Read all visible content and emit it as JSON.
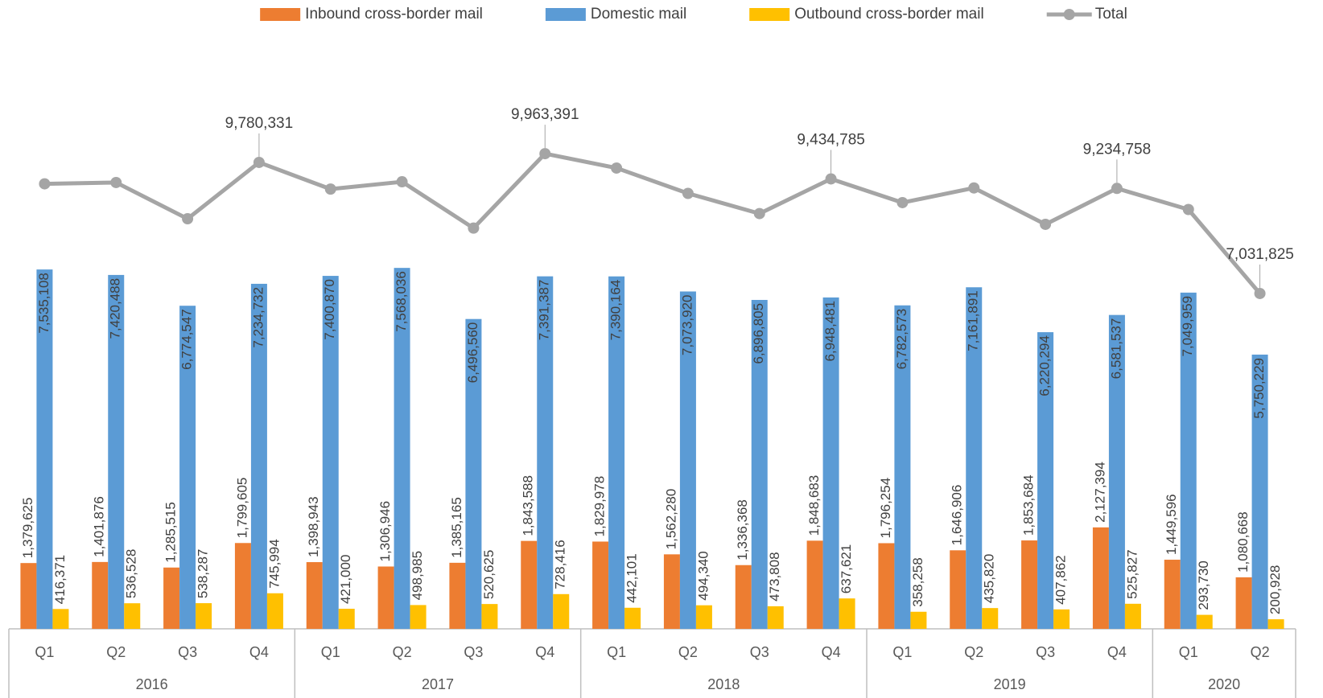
{
  "chart_data": {
    "type": "bar-line",
    "groups": [
      {
        "name": "2016",
        "categories": [
          "Q1",
          "Q2",
          "Q3",
          "Q4"
        ]
      },
      {
        "name": "2017",
        "categories": [
          "Q1",
          "Q2",
          "Q3",
          "Q4"
        ]
      },
      {
        "name": "2018",
        "categories": [
          "Q1",
          "Q2",
          "Q3",
          "Q4"
        ]
      },
      {
        "name": "2019",
        "categories": [
          "Q1",
          "Q2",
          "Q3",
          "Q4"
        ]
      },
      {
        "name": "2020",
        "categories": [
          "Q1",
          "Q2"
        ]
      }
    ],
    "series": [
      {
        "name": "Inbound cross-border mail",
        "type": "bar",
        "color": "#ed7d31",
        "label_position": "outside_end",
        "values": [
          1379625,
          1401876,
          1285515,
          1799605,
          1398943,
          1306946,
          1385165,
          1843588,
          1829978,
          1562280,
          1336368,
          1848683,
          1796254,
          1646906,
          1853684,
          2127394,
          1449596,
          1080668
        ],
        "value_labels": [
          "1,379,625",
          "1,401,876",
          "1,285,515",
          "1,799,605",
          "1,398,943",
          "1,306,946",
          "1,385,165",
          "1,843,588",
          "1,829,978",
          "1,562,280",
          "1,336,368",
          "1,848,683",
          "1,796,254",
          "1,646,906",
          "1,853,684",
          "2,127,394",
          "1,449,596",
          "1,080,668"
        ]
      },
      {
        "name": "Domestic mail",
        "type": "bar",
        "color": "#5b9bd5",
        "label_position": "inside_end",
        "values": [
          7535108,
          7420488,
          6774547,
          7234732,
          7400870,
          7568036,
          6496560,
          7391387,
          7390164,
          7073920,
          6896805,
          6948481,
          6782573,
          7161891,
          6220294,
          6581537,
          7049959,
          5750229
        ],
        "value_labels": [
          "7,535,108",
          "7,420,488",
          "6,774,547",
          "7,234,732",
          "7,400,870",
          "7,568,036",
          "6,496,560",
          "7,391,387",
          "7,390,164",
          "7,073,920",
          "6,896,805",
          "6,948,481",
          "6,782,573",
          "7,161,891",
          "6,220,294",
          "6,581,537",
          "7,049,959",
          "5,750,229"
        ]
      },
      {
        "name": "Outbound cross-border mail",
        "type": "bar",
        "color": "#ffc000",
        "label_position": "outside_end",
        "values": [
          416371,
          536528,
          538287,
          745994,
          421000,
          498985,
          520625,
          728416,
          442101,
          494340,
          473808,
          637621,
          358258,
          435820,
          407862,
          525827,
          293730,
          200928
        ],
        "value_labels": [
          "416,371",
          "536,528",
          "538,287",
          "745,994",
          "421,000",
          "498,985",
          "520,625",
          "728,416",
          "442,101",
          "494,340",
          "473,808",
          "637,621",
          "358,258",
          "435,820",
          "407,862",
          "525,827",
          "293,730",
          "200,928"
        ]
      },
      {
        "name": "Total",
        "type": "line",
        "color": "#a5a5a5",
        "label_position": "above",
        "values": [
          9331104,
          9358892,
          8598349,
          9780331,
          9220813,
          9373967,
          8402350,
          9963391,
          9662243,
          9130540,
          8706981,
          9434785,
          8937085,
          9244617,
          8481840,
          9234758,
          8793285,
          7031825
        ],
        "value_labels": [
          null,
          null,
          null,
          "9,780,331",
          null,
          null,
          null,
          "9,963,391",
          null,
          null,
          null,
          "9,434,785",
          null,
          null,
          null,
          "9,234,758",
          null,
          "7,031,825"
        ]
      }
    ],
    "ylim": [
      0,
      13000000
    ],
    "legend": "top"
  }
}
